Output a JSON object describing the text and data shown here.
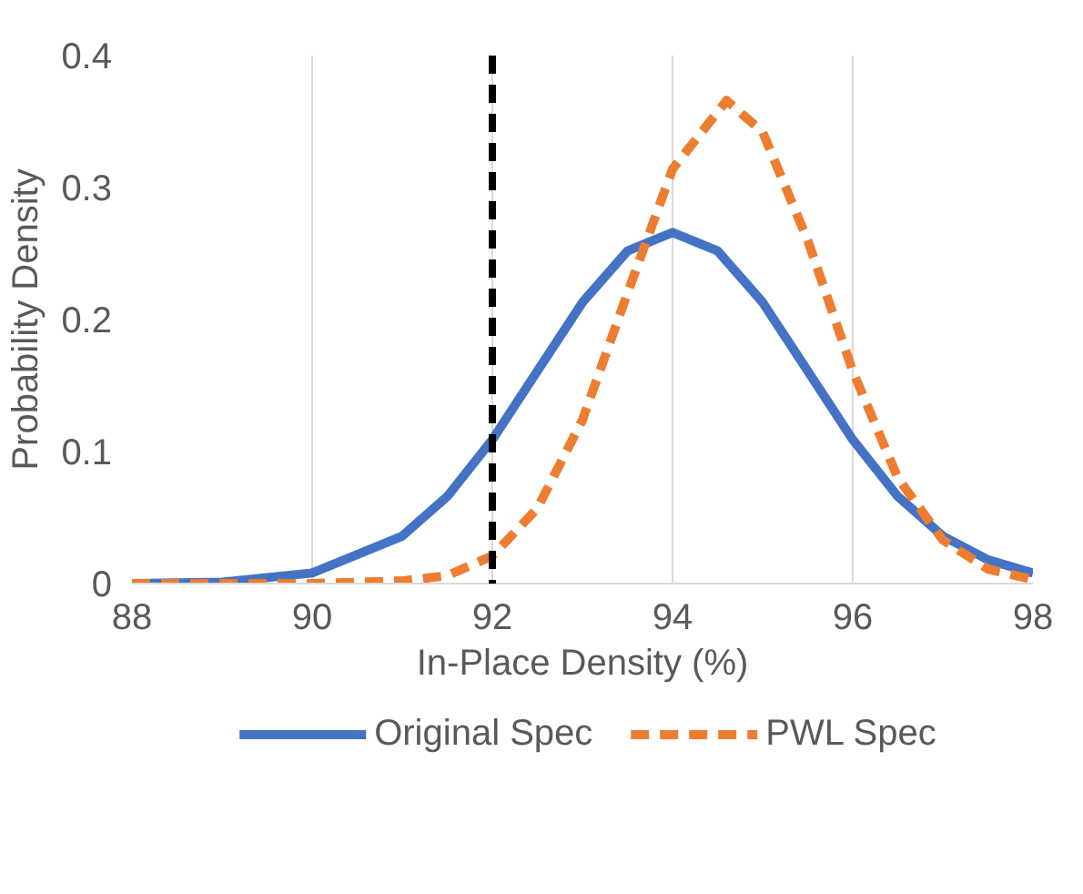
{
  "chart_data": {
    "type": "line",
    "xlabel": "In-Place Density (%)",
    "ylabel": "Probability Density",
    "x": [
      88,
      89,
      90,
      91,
      91.5,
      92,
      92.5,
      93,
      93.5,
      94,
      94.5,
      95,
      95.5,
      96,
      96.5,
      97,
      97.5,
      98
    ],
    "series": [
      {
        "name": "Original Spec",
        "color": "#4472c4",
        "line_style": "solid",
        "values": [
          0,
          0.001,
          0.008,
          0.036,
          0.066,
          0.109,
          0.161,
          0.213,
          0.252,
          0.266,
          0.252,
          0.213,
          0.161,
          0.109,
          0.066,
          0.036,
          0.018,
          0.008
        ]
      },
      {
        "name": "PWL Spec",
        "color": "#ed7d31",
        "line_style": "dashed",
        "x": [
          88,
          89,
          90,
          91,
          91.5,
          92,
          92.5,
          93,
          93.5,
          94,
          94.6,
          95,
          95.5,
          96,
          96.5,
          97,
          97.5,
          98
        ],
        "values": [
          0,
          0,
          0,
          0.002,
          0.006,
          0.021,
          0.057,
          0.124,
          0.22,
          0.314,
          0.366,
          0.342,
          0.26,
          0.161,
          0.08,
          0.033,
          0.011,
          0.003
        ]
      }
    ],
    "xlim": [
      88,
      98
    ],
    "xticks": [
      88,
      90,
      92,
      94,
      96,
      98
    ],
    "ylim": [
      0,
      0.4
    ],
    "yticks": [
      0,
      {
        "value": 0.1,
        "label": "0.1"
      },
      {
        "value": 0.2,
        "label": "0.2"
      },
      {
        "value": 0.3,
        "label": "0.3"
      },
      {
        "value": 0.4,
        "label": "0.4"
      }
    ],
    "grid": "x",
    "legend": "bottom",
    "ref_lines": [
      {
        "axis": "x",
        "value": 92,
        "color": "#000000",
        "line_style": "dashed"
      }
    ]
  }
}
